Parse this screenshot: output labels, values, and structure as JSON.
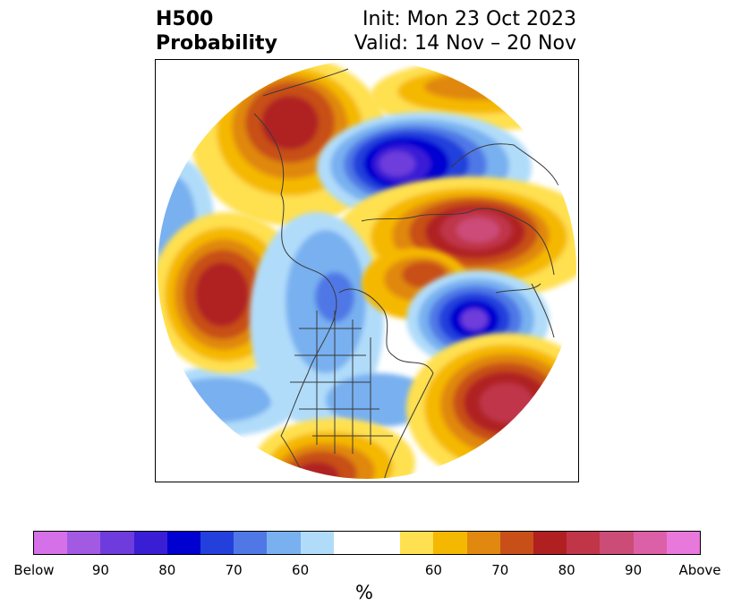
{
  "title": {
    "left_line1": "H500",
    "left_line2": "Probability",
    "right_line1": "Init: Mon 23 Oct 2023",
    "right_line2": "Valid: 14 Nov – 20 Nov"
  },
  "colorbar": {
    "unit": "%",
    "ticks": [
      "Below",
      "90",
      "80",
      "70",
      "60",
      "60",
      "70",
      "80",
      "90",
      "Above"
    ],
    "below_colors": [
      "#d670e8",
      "#a25ae3",
      "#6e3cdc",
      "#3a1ed6",
      "#0000d0",
      "#2340dc",
      "#4f78e6",
      "#78b0f0",
      "#b0dcfa"
    ],
    "neutral_color": "#ffffff",
    "above_colors": [
      "#ffe050",
      "#f5b800",
      "#e08810",
      "#c85018",
      "#b02020",
      "#c03648",
      "#cc4c78",
      "#dc60a8",
      "#e878dc"
    ]
  },
  "map": {
    "projection": "north-polar-stereographic",
    "region": "North America / Arctic",
    "anomalies": [
      {
        "type": "above",
        "location": "eastern Siberia",
        "peak": "80"
      },
      {
        "type": "below",
        "location": "Arctic Ocean / Greenland north",
        "peak": "90"
      },
      {
        "type": "above",
        "location": "Scandinavia / western Russia",
        "peak": "Above"
      },
      {
        "type": "below",
        "location": "North Atlantic / western Europe",
        "peak": "90"
      },
      {
        "type": "above",
        "location": "central North Atlantic",
        "peak": "90"
      },
      {
        "type": "above",
        "location": "Gulf of Alaska / North Pacific",
        "peak": "80"
      },
      {
        "type": "below",
        "location": "eastern North America",
        "peak": "70"
      },
      {
        "type": "above",
        "location": "southwestern US / Mexico",
        "peak": "80"
      }
    ]
  }
}
